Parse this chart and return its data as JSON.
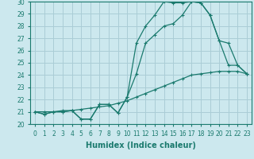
{
  "xlabel": "Humidex (Indice chaleur)",
  "x": [
    0,
    1,
    2,
    3,
    4,
    5,
    6,
    7,
    8,
    9,
    10,
    11,
    12,
    13,
    14,
    15,
    16,
    17,
    18,
    19,
    20,
    21,
    22,
    23
  ],
  "line1": [
    21.0,
    20.8,
    21.0,
    21.0,
    21.1,
    20.4,
    20.4,
    21.6,
    21.6,
    20.9,
    22.2,
    24.1,
    26.6,
    27.3,
    28.0,
    28.2,
    28.9,
    30.0,
    29.9,
    28.9,
    26.8,
    26.6,
    24.8,
    24.1
  ],
  "line2": [
    21.0,
    20.8,
    21.0,
    21.0,
    21.1,
    20.4,
    20.4,
    21.6,
    21.6,
    20.9,
    22.2,
    26.6,
    28.0,
    28.9,
    30.0,
    29.9,
    29.9,
    30.0,
    29.9,
    28.9,
    26.8,
    24.8,
    24.8,
    24.1
  ],
  "line3": [
    21.0,
    21.0,
    21.0,
    21.1,
    21.1,
    21.2,
    21.3,
    21.4,
    21.5,
    21.7,
    21.9,
    22.2,
    22.5,
    22.8,
    23.1,
    23.4,
    23.7,
    24.0,
    24.1,
    24.2,
    24.3,
    24.3,
    24.3,
    24.1
  ],
  "bg_color": "#cce8ee",
  "line_color": "#1a7a6e",
  "grid_color": "#aacdd6",
  "ylim_min": 20,
  "ylim_max": 30,
  "yticks": [
    20,
    21,
    22,
    23,
    24,
    25,
    26,
    27,
    28,
    29,
    30
  ],
  "xticks": [
    0,
    1,
    2,
    3,
    4,
    5,
    6,
    7,
    8,
    9,
    10,
    11,
    12,
    13,
    14,
    15,
    16,
    17,
    18,
    19,
    20,
    21,
    22,
    23
  ],
  "tick_fontsize": 5.5,
  "label_fontsize": 7.0,
  "marker": "+",
  "markersize": 3.5,
  "linewidth": 0.9
}
